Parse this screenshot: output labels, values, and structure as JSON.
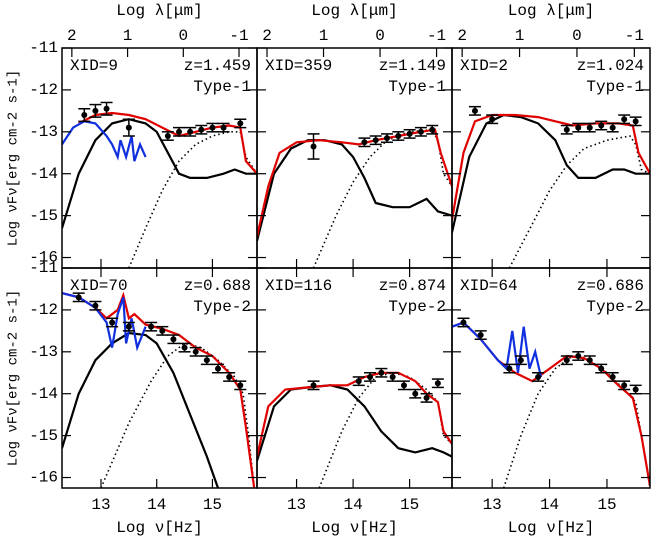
{
  "chart_data": [
    {
      "type": "line",
      "title": "XID=9",
      "subtitle": "z=1.459",
      "annotation": "Type-1",
      "x2label": "Log λ[μm]",
      "ylabel": "Log νFν[erg cm-2 s-1]",
      "xlim": [
        12.3,
        15.8
      ],
      "ylim": [
        -16.25,
        -11
      ],
      "xticks": [
        13,
        14,
        15
      ],
      "yticks": [
        -11,
        -12,
        -13,
        -14,
        -15,
        -16
      ],
      "x2lim": [
        2.177,
        -1.323
      ],
      "x2ticks": [
        2,
        1,
        0,
        -1
      ],
      "xtick_labels": false,
      "ytick_labels": true,
      "series": [
        {
          "color": "#000000",
          "style": "solid",
          "x": [
            12.3,
            12.6,
            12.9,
            13.2,
            13.5,
            13.8,
            14.0,
            14.2,
            14.4,
            14.6,
            14.9,
            15.2,
            15.4,
            15.6,
            15.8
          ],
          "values": [
            -15.3,
            -14.0,
            -13.2,
            -12.8,
            -12.7,
            -12.8,
            -13.0,
            -13.5,
            -14.0,
            -14.1,
            -14.1,
            -14.0,
            -13.9,
            -14.0,
            -14.0
          ]
        },
        {
          "color": "#000000",
          "style": "dotted",
          "x": [
            13.5,
            13.8,
            14.1,
            14.4,
            14.7,
            15.0,
            15.3,
            15.5,
            15.6,
            15.8
          ],
          "values": [
            -16.25,
            -15.3,
            -14.4,
            -13.7,
            -13.3,
            -13.1,
            -13.0,
            -13.0,
            -13.6,
            -14.0
          ]
        },
        {
          "color": "#e00000",
          "style": "solid",
          "x": [
            12.6,
            12.9,
            13.2,
            13.5,
            13.8,
            14.1,
            14.4,
            14.7,
            15.0,
            15.3,
            15.5,
            15.6,
            15.8
          ],
          "values": [
            -12.8,
            -12.6,
            -12.55,
            -12.6,
            -12.7,
            -12.9,
            -13.1,
            -13.0,
            -12.9,
            -12.85,
            -12.9,
            -13.7,
            -14.0
          ]
        },
        {
          "color": "#1030e0",
          "style": "solid",
          "x": [
            12.3,
            12.5,
            12.7,
            12.9,
            13.1,
            13.2,
            13.3,
            13.35,
            13.45,
            13.55,
            13.6,
            13.7,
            13.8
          ],
          "values": [
            -13.3,
            -12.9,
            -12.75,
            -12.8,
            -13.1,
            -13.3,
            -13.6,
            -13.2,
            -13.6,
            -13.1,
            -13.7,
            -13.3,
            -13.6
          ]
        },
        {
          "type": "errorbar",
          "color": "#000000",
          "x": [
            12.7,
            12.9,
            13.1,
            13.5,
            14.2,
            14.4,
            14.6,
            14.8,
            15.0,
            15.2,
            15.5
          ],
          "values": [
            -12.6,
            -12.5,
            -12.45,
            -12.9,
            -13.1,
            -13.0,
            -13.0,
            -12.95,
            -12.9,
            -12.9,
            -12.8
          ],
          "errors": [
            0.15,
            0.15,
            0.15,
            0.2,
            0.1,
            0.1,
            0.1,
            0.1,
            0.1,
            0.1,
            0.1
          ]
        }
      ]
    },
    {
      "type": "line",
      "title": "XID=359",
      "subtitle": "z=1.149",
      "annotation": "Type-1",
      "x2label": "Log λ[μm]",
      "xlim": [
        12.3,
        15.75
      ],
      "ylim": [
        -16.25,
        -11
      ],
      "xticks": [
        13,
        14,
        15
      ],
      "yticks": [
        -11,
        -12,
        -13,
        -14,
        -15,
        -16
      ],
      "x2lim": [
        2.177,
        -1.273
      ],
      "x2ticks": [
        2,
        1,
        0,
        -1
      ],
      "xtick_labels": false,
      "ytick_labels": false,
      "series": [
        {
          "color": "#000000",
          "style": "solid",
          "x": [
            12.3,
            12.6,
            12.9,
            13.2,
            13.5,
            13.8,
            14.0,
            14.2,
            14.4,
            14.7,
            15.0,
            15.3,
            15.5,
            15.75
          ],
          "values": [
            -15.6,
            -14.0,
            -13.4,
            -13.2,
            -13.2,
            -13.3,
            -13.6,
            -14.1,
            -14.7,
            -14.8,
            -14.8,
            -14.6,
            -14.9,
            -15.0
          ]
        },
        {
          "color": "#000000",
          "style": "dotted",
          "x": [
            13.3,
            13.7,
            14.0,
            14.3,
            14.6,
            15.0,
            15.4,
            15.5,
            15.6,
            15.75
          ],
          "values": [
            -16.25,
            -15.0,
            -14.2,
            -13.6,
            -13.2,
            -13.0,
            -12.95,
            -13.2,
            -14.0,
            -14.3
          ]
        },
        {
          "color": "#e00000",
          "style": "solid",
          "x": [
            12.3,
            12.5,
            12.7,
            13.0,
            13.4,
            13.8,
            14.1,
            14.4,
            14.8,
            15.2,
            15.45,
            15.55,
            15.75
          ],
          "values": [
            -15.5,
            -14.3,
            -13.5,
            -13.25,
            -13.2,
            -13.25,
            -13.3,
            -13.2,
            -13.1,
            -13.0,
            -12.95,
            -13.5,
            -14.3
          ]
        },
        {
          "type": "errorbar",
          "color": "#000000",
          "x": [
            13.3,
            14.2,
            14.4,
            14.6,
            14.8,
            15.0,
            15.2,
            15.4
          ],
          "values": [
            -13.35,
            -13.25,
            -13.2,
            -13.15,
            -13.1,
            -13.05,
            -13.0,
            -12.95
          ],
          "errors": [
            0.3,
            0.1,
            0.1,
            0.1,
            0.1,
            0.1,
            0.1,
            0.1
          ]
        }
      ]
    },
    {
      "type": "line",
      "title": "XID=2",
      "subtitle": "z=1.024",
      "annotation": "Type-1",
      "x2label": "Log λ[μm]",
      "xlim": [
        12.3,
        15.75
      ],
      "ylim": [
        -16.25,
        -11
      ],
      "xticks": [
        13,
        14,
        15
      ],
      "yticks": [
        -11,
        -12,
        -13,
        -14,
        -15,
        -16
      ],
      "x2lim": [
        2.177,
        -1.273
      ],
      "x2ticks": [
        2,
        1,
        0,
        -1
      ],
      "xtick_labels": false,
      "ytick_labels": false,
      "series": [
        {
          "color": "#000000",
          "style": "solid",
          "x": [
            12.3,
            12.6,
            12.9,
            13.2,
            13.5,
            13.8,
            14.1,
            14.3,
            14.5,
            14.8,
            15.1,
            15.3,
            15.5,
            15.75
          ],
          "values": [
            -15.4,
            -13.6,
            -12.8,
            -12.6,
            -12.65,
            -12.8,
            -13.2,
            -13.8,
            -14.1,
            -14.1,
            -13.9,
            -13.9,
            -14.0,
            -14.0
          ]
        },
        {
          "color": "#000000",
          "style": "dotted",
          "x": [
            13.3,
            13.7,
            14.0,
            14.3,
            14.6,
            15.0,
            15.4,
            15.5,
            15.6,
            15.75
          ],
          "values": [
            -16.25,
            -15.2,
            -14.4,
            -13.8,
            -13.4,
            -13.2,
            -13.1,
            -13.3,
            -13.9,
            -14.0
          ]
        },
        {
          "color": "#e00000",
          "style": "solid",
          "x": [
            12.3,
            12.5,
            12.7,
            13.0,
            13.4,
            13.8,
            14.1,
            14.4,
            14.8,
            15.2,
            15.45,
            15.55,
            15.75
          ],
          "values": [
            -15.1,
            -13.5,
            -12.75,
            -12.6,
            -12.6,
            -12.65,
            -12.75,
            -12.85,
            -12.8,
            -12.8,
            -12.85,
            -13.5,
            -14.0
          ]
        },
        {
          "type": "errorbar",
          "color": "#000000",
          "x": [
            12.7,
            13.0,
            14.3,
            14.5,
            14.7,
            14.9,
            15.1,
            15.3,
            15.5
          ],
          "values": [
            -12.5,
            -12.7,
            -12.95,
            -12.9,
            -12.9,
            -12.85,
            -12.9,
            -12.7,
            -12.75
          ],
          "errors": [
            0.1,
            0.1,
            0.1,
            0.1,
            0.1,
            0.1,
            0.1,
            0.1,
            0.1
          ]
        }
      ]
    },
    {
      "type": "line",
      "title": "XID=70",
      "subtitle": "z=0.688",
      "annotation": "Type-2",
      "xlabel": "Log ν[Hz]",
      "ylabel": "Log νFν[erg cm-2 s-1]",
      "xlim": [
        12.3,
        15.8
      ],
      "ylim": [
        -16.25,
        -11
      ],
      "xticks": [
        13,
        14,
        15
      ],
      "yticks": [
        -11,
        -12,
        -13,
        -14,
        -15,
        -16
      ],
      "xtick_labels": true,
      "ytick_labels": true,
      "series": [
        {
          "color": "#000000",
          "style": "solid",
          "x": [
            12.3,
            12.6,
            12.9,
            13.2,
            13.5,
            13.8,
            14.0,
            14.3,
            14.6,
            14.9,
            15.1
          ],
          "values": [
            -15.3,
            -14.0,
            -13.2,
            -12.8,
            -12.55,
            -12.6,
            -12.8,
            -13.5,
            -14.5,
            -15.5,
            -16.25
          ]
        },
        {
          "color": "#000000",
          "style": "dotted",
          "x": [
            13.0,
            13.5,
            13.9,
            14.2,
            14.5,
            14.8,
            15.1,
            15.4,
            15.55,
            15.65,
            15.75
          ],
          "values": [
            -16.25,
            -14.7,
            -13.7,
            -13.1,
            -12.8,
            -12.9,
            -13.2,
            -13.6,
            -14.0,
            -15.0,
            -16.25
          ]
        },
        {
          "color": "#e00000",
          "style": "solid",
          "x": [
            12.3,
            12.6,
            12.9,
            13.1,
            13.3,
            13.4,
            13.5,
            13.6,
            13.8,
            14.1,
            14.4,
            14.7,
            15.0,
            15.3,
            15.5,
            15.6,
            15.75
          ],
          "values": [
            -11.6,
            -11.7,
            -11.95,
            -12.2,
            -12.0,
            -11.65,
            -12.2,
            -12.1,
            -12.35,
            -12.45,
            -12.6,
            -12.9,
            -13.1,
            -13.5,
            -13.9,
            -14.8,
            -16.25
          ]
        },
        {
          "color": "#1030e0",
          "style": "solid",
          "x": [
            12.3,
            12.6,
            12.9,
            13.1,
            13.2,
            13.3,
            13.4,
            13.45,
            13.55,
            13.65,
            13.8
          ],
          "values": [
            -11.6,
            -11.7,
            -11.95,
            -12.3,
            -12.9,
            -12.1,
            -11.7,
            -12.8,
            -12.2,
            -12.9,
            -12.4
          ]
        },
        {
          "type": "errorbar",
          "color": "#000000",
          "x": [
            12.6,
            12.9,
            13.2,
            13.5,
            13.9,
            14.1,
            14.3,
            14.5,
            14.7,
            14.9,
            15.1,
            15.3,
            15.5
          ],
          "values": [
            -11.7,
            -11.9,
            -12.3,
            -12.4,
            -12.4,
            -12.5,
            -12.7,
            -12.9,
            -13.0,
            -13.2,
            -13.4,
            -13.6,
            -13.8
          ],
          "errors": [
            0.1,
            0.1,
            0.1,
            0.1,
            0.1,
            0.1,
            0.1,
            0.1,
            0.1,
            0.1,
            0.1,
            0.1,
            0.1
          ]
        }
      ]
    },
    {
      "type": "line",
      "title": "XID=116",
      "subtitle": "z=0.874",
      "annotation": "Type-2",
      "xlabel": "Log ν[Hz]",
      "xlim": [
        12.3,
        15.75
      ],
      "ylim": [
        -16.25,
        -11
      ],
      "xticks": [
        13,
        14,
        15
      ],
      "yticks": [
        -11,
        -12,
        -13,
        -14,
        -15,
        -16
      ],
      "xtick_labels": true,
      "ytick_labels": false,
      "series": [
        {
          "color": "#000000",
          "style": "solid",
          "x": [
            12.3,
            12.6,
            12.9,
            13.2,
            13.6,
            13.9,
            14.2,
            14.5,
            14.8,
            15.1,
            15.4,
            15.6,
            15.75
          ],
          "values": [
            -15.6,
            -14.3,
            -13.9,
            -13.85,
            -13.8,
            -13.9,
            -14.3,
            -14.9,
            -15.3,
            -15.4,
            -15.3,
            -15.4,
            -15.5
          ]
        },
        {
          "color": "#000000",
          "style": "dotted",
          "x": [
            13.4,
            13.8,
            14.1,
            14.4,
            14.7,
            15.0,
            15.3,
            15.5,
            15.6,
            15.75
          ],
          "values": [
            -16.25,
            -14.9,
            -14.1,
            -13.6,
            -13.5,
            -13.6,
            -13.9,
            -14.2,
            -15.0,
            -15.2
          ]
        },
        {
          "color": "#e00000",
          "style": "solid",
          "x": [
            12.3,
            12.5,
            12.8,
            13.2,
            13.6,
            13.9,
            14.2,
            14.5,
            14.8,
            15.1,
            15.3,
            15.5,
            15.6,
            15.75
          ],
          "values": [
            -15.5,
            -14.3,
            -13.9,
            -13.85,
            -13.8,
            -13.8,
            -13.6,
            -13.5,
            -13.5,
            -13.7,
            -14.0,
            -14.2,
            -14.9,
            -15.2
          ]
        },
        {
          "type": "errorbar",
          "color": "#000000",
          "x": [
            13.3,
            14.1,
            14.3,
            14.5,
            14.7,
            14.9,
            15.1,
            15.3,
            15.5
          ],
          "values": [
            -13.8,
            -13.7,
            -13.6,
            -13.5,
            -13.6,
            -13.8,
            -14.0,
            -14.1,
            -13.75
          ],
          "errors": [
            0.1,
            0.1,
            0.1,
            0.1,
            0.1,
            0.1,
            0.1,
            0.1,
            0.1
          ]
        }
      ]
    },
    {
      "type": "line",
      "title": "XID=64",
      "subtitle": "z=0.686",
      "annotation": "Type-2",
      "xlabel": "Log ν[Hz]",
      "xlim": [
        12.3,
        15.75
      ],
      "ylim": [
        -16.25,
        -11
      ],
      "xticks": [
        13,
        14,
        15
      ],
      "yticks": [
        -11,
        -12,
        -13,
        -14,
        -15,
        -16
      ],
      "xtick_labels": true,
      "ytick_labels": false,
      "series": [
        {
          "color": "#000000",
          "style": "dotted",
          "x": [
            13.2,
            13.5,
            13.8,
            14.1,
            14.4,
            14.7,
            15.0,
            15.3,
            15.5,
            15.6,
            15.75
          ],
          "values": [
            -16.25,
            -15.0,
            -14.0,
            -13.4,
            -13.1,
            -13.2,
            -13.5,
            -13.9,
            -14.2,
            -15.0,
            -16.25
          ]
        },
        {
          "color": "#e00000",
          "style": "solid",
          "x": [
            12.3,
            12.5,
            12.8,
            13.1,
            13.4,
            13.7,
            14.0,
            14.3,
            14.6,
            14.9,
            15.2,
            15.45,
            15.6,
            15.75
          ],
          "values": [
            -12.4,
            -12.3,
            -12.7,
            -13.2,
            -13.5,
            -13.7,
            -13.4,
            -13.1,
            -13.15,
            -13.4,
            -13.8,
            -14.1,
            -15.0,
            -16.2
          ]
        },
        {
          "color": "#1030e0",
          "style": "solid",
          "x": [
            12.3,
            12.5,
            12.8,
            13.1,
            13.25,
            13.35,
            13.45,
            13.55,
            13.65,
            13.75,
            13.85
          ],
          "values": [
            -12.4,
            -12.3,
            -12.7,
            -13.2,
            -13.4,
            -12.5,
            -13.5,
            -12.4,
            -13.4,
            -13.0,
            -13.6
          ]
        },
        {
          "type": "errorbar",
          "color": "#000000",
          "x": [
            12.5,
            12.8,
            13.3,
            13.5,
            13.8,
            14.3,
            14.5,
            14.7,
            14.9,
            15.1,
            15.3,
            15.5
          ],
          "values": [
            -12.3,
            -12.6,
            -13.4,
            -13.2,
            -13.6,
            -13.2,
            -13.1,
            -13.2,
            -13.4,
            -13.6,
            -13.8,
            -13.9
          ],
          "errors": [
            0.1,
            0.1,
            0.1,
            0.1,
            0.1,
            0.1,
            0.1,
            0.1,
            0.1,
            0.1,
            0.1,
            0.1
          ]
        }
      ]
    }
  ]
}
